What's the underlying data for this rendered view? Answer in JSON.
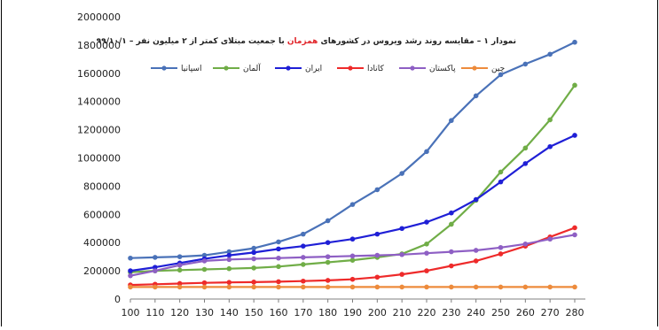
{
  "chart_data": {
    "type": "line",
    "title": {
      "prefix": "نمودار ۱ – مقایسه روند رشد ویروس در کشورهای ",
      "highlight": "همزمان",
      "suffix": " با جمعیت مبتلای کمتر از ۲ میلیون نفر – ۹۹/۱۰/۱"
    },
    "xlabel": "",
    "ylabel": "",
    "x": [
      100,
      110,
      120,
      130,
      140,
      150,
      160,
      170,
      180,
      190,
      200,
      210,
      220,
      230,
      240,
      250,
      260,
      270,
      280
    ],
    "xlim": [
      100,
      280
    ],
    "ylim": [
      0,
      2000000
    ],
    "yticks": [
      0,
      200000,
      400000,
      600000,
      800000,
      1000000,
      1200000,
      1400000,
      1600000,
      1800000,
      2000000
    ],
    "grid": false,
    "legend": "top",
    "series": [
      {
        "name": "اسپانیا",
        "color": "#4a72b8",
        "values": [
          290000,
          295000,
          300000,
          310000,
          335000,
          360000,
          405000,
          460000,
          555000,
          670000,
          775000,
          890000,
          1045000,
          1265000,
          1440000,
          1590000,
          1665000,
          1735000,
          1820000
        ]
      },
      {
        "name": "آلمان",
        "color": "#70ad47",
        "values": [
          190000,
          200000,
          205000,
          210000,
          215000,
          220000,
          230000,
          245000,
          260000,
          275000,
          295000,
          320000,
          390000,
          530000,
          700000,
          900000,
          1070000,
          1270000,
          1515000
        ]
      },
      {
        "name": "ایران",
        "color": "#1f1fd6",
        "values": [
          200000,
          225000,
          255000,
          285000,
          310000,
          330000,
          355000,
          375000,
          400000,
          425000,
          460000,
          500000,
          545000,
          610000,
          705000,
          830000,
          960000,
          1080000,
          1160000
        ]
      },
      {
        "name": "کانادا",
        "color": "#ee2a2a",
        "values": [
          100000,
          105000,
          110000,
          115000,
          118000,
          120000,
          123000,
          127000,
          132000,
          140000,
          155000,
          175000,
          200000,
          235000,
          270000,
          320000,
          375000,
          440000,
          505000
        ]
      },
      {
        "name": "پاکستان",
        "color": "#8e5fc4",
        "values": [
          165000,
          200000,
          240000,
          270000,
          280000,
          285000,
          290000,
          295000,
          300000,
          305000,
          310000,
          315000,
          325000,
          335000,
          345000,
          365000,
          390000,
          425000,
          455000
        ]
      },
      {
        "name": "چین",
        "color": "#ed8b3c",
        "values": [
          85000,
          85000,
          85000,
          85000,
          85000,
          85000,
          85000,
          85000,
          85000,
          85000,
          85000,
          85000,
          85000,
          85000,
          85000,
          85000,
          85000,
          85000,
          85000
        ]
      }
    ]
  }
}
